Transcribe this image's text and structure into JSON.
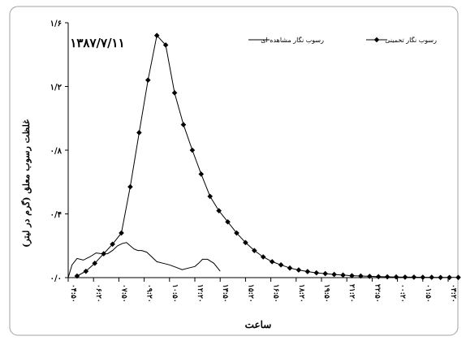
{
  "chart_data": {
    "type": "line",
    "date_label": "۱۳۸۷/۷/۱۱",
    "xlabel": "ساعت",
    "ylabel": "غلظت رسوب معلق (گرم در لیتر)",
    "ylim": [
      0,
      1.6
    ],
    "y_ticks": [
      {
        "value": 0,
        "label": "۰/۰"
      },
      {
        "value": 0.4,
        "label": "۰/۴"
      },
      {
        "value": 0.8,
        "label": "۰/۸"
      },
      {
        "value": 1.2,
        "label": "۱/۲"
      },
      {
        "value": 1.6,
        "label": "۱/۶"
      }
    ],
    "x_tick_labels": [
      "۰۴:۵۰",
      "۰۶:۲۰",
      "۰۷:۵۰",
      "۰۹:۲۰",
      "۱۰:۵۰",
      "۱۲:۲۰",
      "۱۳:۵۰",
      "۱۵:۲۰",
      "۱۶:۵۰",
      "۱۸:۲۰",
      "۱۹:۵۰",
      "۲۱:۲۰",
      "۲۲:۵۰",
      "۰۰:۲۰",
      "۰۱:۵۰",
      "۰۳:۲۰"
    ],
    "series": [
      {
        "name": "رسوب نگار مشاهده ای",
        "marker": "none",
        "x": [
          0,
          0.15,
          0.35,
          0.6,
          0.85,
          1.1,
          1.35,
          1.55,
          1.75,
          1.95,
          2.15,
          2.3,
          2.45,
          2.6,
          2.75,
          2.9,
          3.1,
          3.3,
          3.5,
          3.75,
          4.0,
          4.25,
          4.5,
          4.75,
          5.0,
          5.15,
          5.3,
          5.5,
          5.75,
          6.0
        ],
        "y": [
          0,
          0.08,
          0.12,
          0.11,
          0.13,
          0.155,
          0.15,
          0.15,
          0.17,
          0.2,
          0.215,
          0.22,
          0.2,
          0.18,
          0.17,
          0.17,
          0.16,
          0.13,
          0.1,
          0.09,
          0.08,
          0.065,
          0.05,
          0.06,
          0.07,
          0.09,
          0.115,
          0.115,
          0.09,
          0.04
        ]
      },
      {
        "name": "رسوب نگار تخمینی",
        "marker": "diamond",
        "x": [
          0.35,
          0.7,
          1.05,
          1.4,
          1.75,
          2.1,
          2.45,
          2.8,
          3.15,
          3.5,
          3.85,
          4.2,
          4.55,
          4.9,
          5.25,
          5.6,
          5.95,
          6.3,
          6.65,
          7.0,
          7.35,
          7.7,
          8.05,
          8.4,
          8.75,
          9.1,
          9.45,
          9.8,
          10.15,
          10.5,
          10.85,
          11.2,
          11.55,
          11.9,
          12.25,
          12.6,
          12.95,
          13.3,
          13.65,
          14.0,
          14.35,
          14.7,
          15.05,
          15.4
        ],
        "y": [
          0.01,
          0.04,
          0.09,
          0.15,
          0.21,
          0.28,
          0.57,
          0.91,
          1.24,
          1.52,
          1.46,
          1.16,
          0.96,
          0.8,
          0.65,
          0.51,
          0.42,
          0.35,
          0.28,
          0.22,
          0.17,
          0.13,
          0.1,
          0.08,
          0.06,
          0.048,
          0.038,
          0.03,
          0.025,
          0.02,
          0.016,
          0.012,
          0.01,
          0.008,
          0.006,
          0.005,
          0.004,
          0.003,
          0.003,
          0.002,
          0.002,
          0.001,
          0.001,
          0.001
        ]
      }
    ],
    "legend_position": "top-right"
  }
}
